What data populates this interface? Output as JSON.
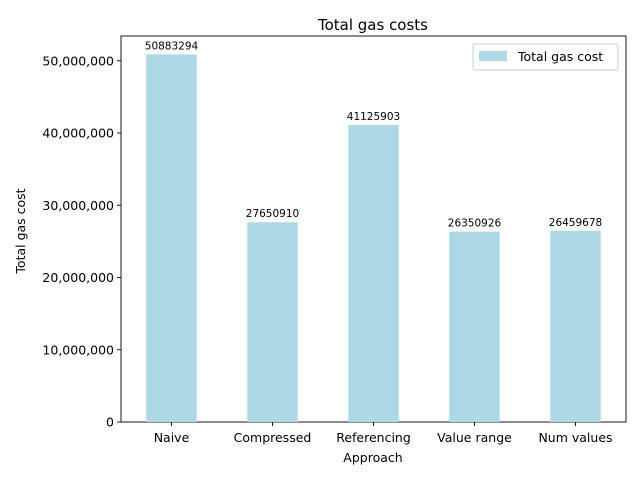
{
  "chart_data": {
    "type": "bar",
    "title": "Total gas costs",
    "xlabel": "Approach",
    "ylabel": "Total gas cost",
    "categories": [
      "Naive",
      "Compressed",
      "Referencing",
      "Value range",
      "Num values"
    ],
    "series": [
      {
        "name": "Total gas cost",
        "values": [
          50883294,
          27650910,
          41125903,
          26350926,
          26459678
        ],
        "color": "#add8e6"
      }
    ],
    "data_labels": [
      "50883294",
      "27650910",
      "41125903",
      "26350926",
      "26459678"
    ],
    "ylim": [
      0,
      53427459
    ],
    "y_ticks": [
      0,
      10000000,
      20000000,
      30000000,
      40000000,
      50000000
    ],
    "y_tick_labels": [
      "0",
      "10,000,000",
      "20,000,000",
      "30,000,000",
      "40,000,000",
      "50,000,000"
    ],
    "legend_position": "top-right",
    "grid": false
  }
}
